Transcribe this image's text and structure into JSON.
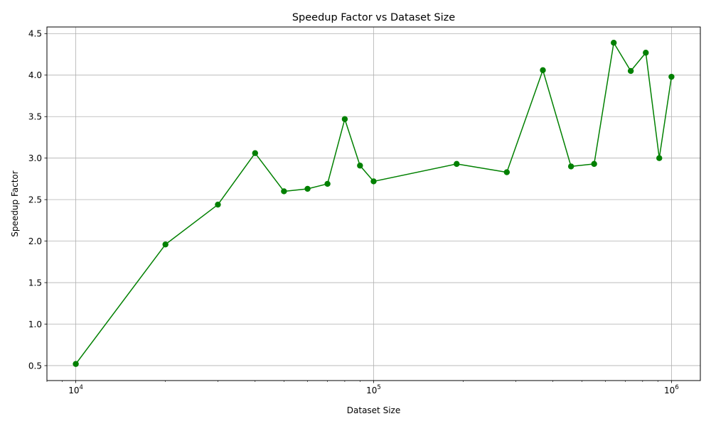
{
  "chart_data": {
    "type": "line",
    "title": "Speedup Factor vs Dataset Size",
    "xlabel": "Dataset Size",
    "ylabel": "Speedup Factor",
    "x_scale": "log",
    "xlim": [
      8000,
      1250000
    ],
    "ylim": [
      0.32,
      4.58
    ],
    "x_ticks": [
      {
        "value": 10000,
        "base": "10",
        "exp": "4"
      },
      {
        "value": 100000,
        "base": "10",
        "exp": "5"
      },
      {
        "value": 1000000,
        "base": "10",
        "exp": "6"
      }
    ],
    "y_ticks": [
      {
        "value": 0.5,
        "label": "0.5"
      },
      {
        "value": 1.0,
        "label": "1.0"
      },
      {
        "value": 1.5,
        "label": "1.5"
      },
      {
        "value": 2.0,
        "label": "2.0"
      },
      {
        "value": 2.5,
        "label": "2.5"
      },
      {
        "value": 3.0,
        "label": "3.0"
      },
      {
        "value": 3.5,
        "label": "3.5"
      },
      {
        "value": 4.0,
        "label": "4.0"
      },
      {
        "value": 4.5,
        "label": "4.5"
      }
    ],
    "grid": true,
    "series": [
      {
        "color": "#008000",
        "marker": "circle",
        "x": [
          10000,
          20000,
          30000,
          40000,
          50000,
          60000,
          70000,
          80000,
          90000,
          100000,
          190000,
          280000,
          370000,
          460000,
          550000,
          640000,
          730000,
          820000,
          910000,
          1000000
        ],
        "y": [
          0.52,
          1.96,
          2.44,
          3.06,
          2.6,
          2.63,
          2.69,
          3.47,
          2.91,
          2.72,
          2.93,
          2.83,
          4.06,
          2.9,
          2.93,
          4.39,
          4.05,
          4.27,
          3.0,
          3.98
        ]
      }
    ]
  }
}
